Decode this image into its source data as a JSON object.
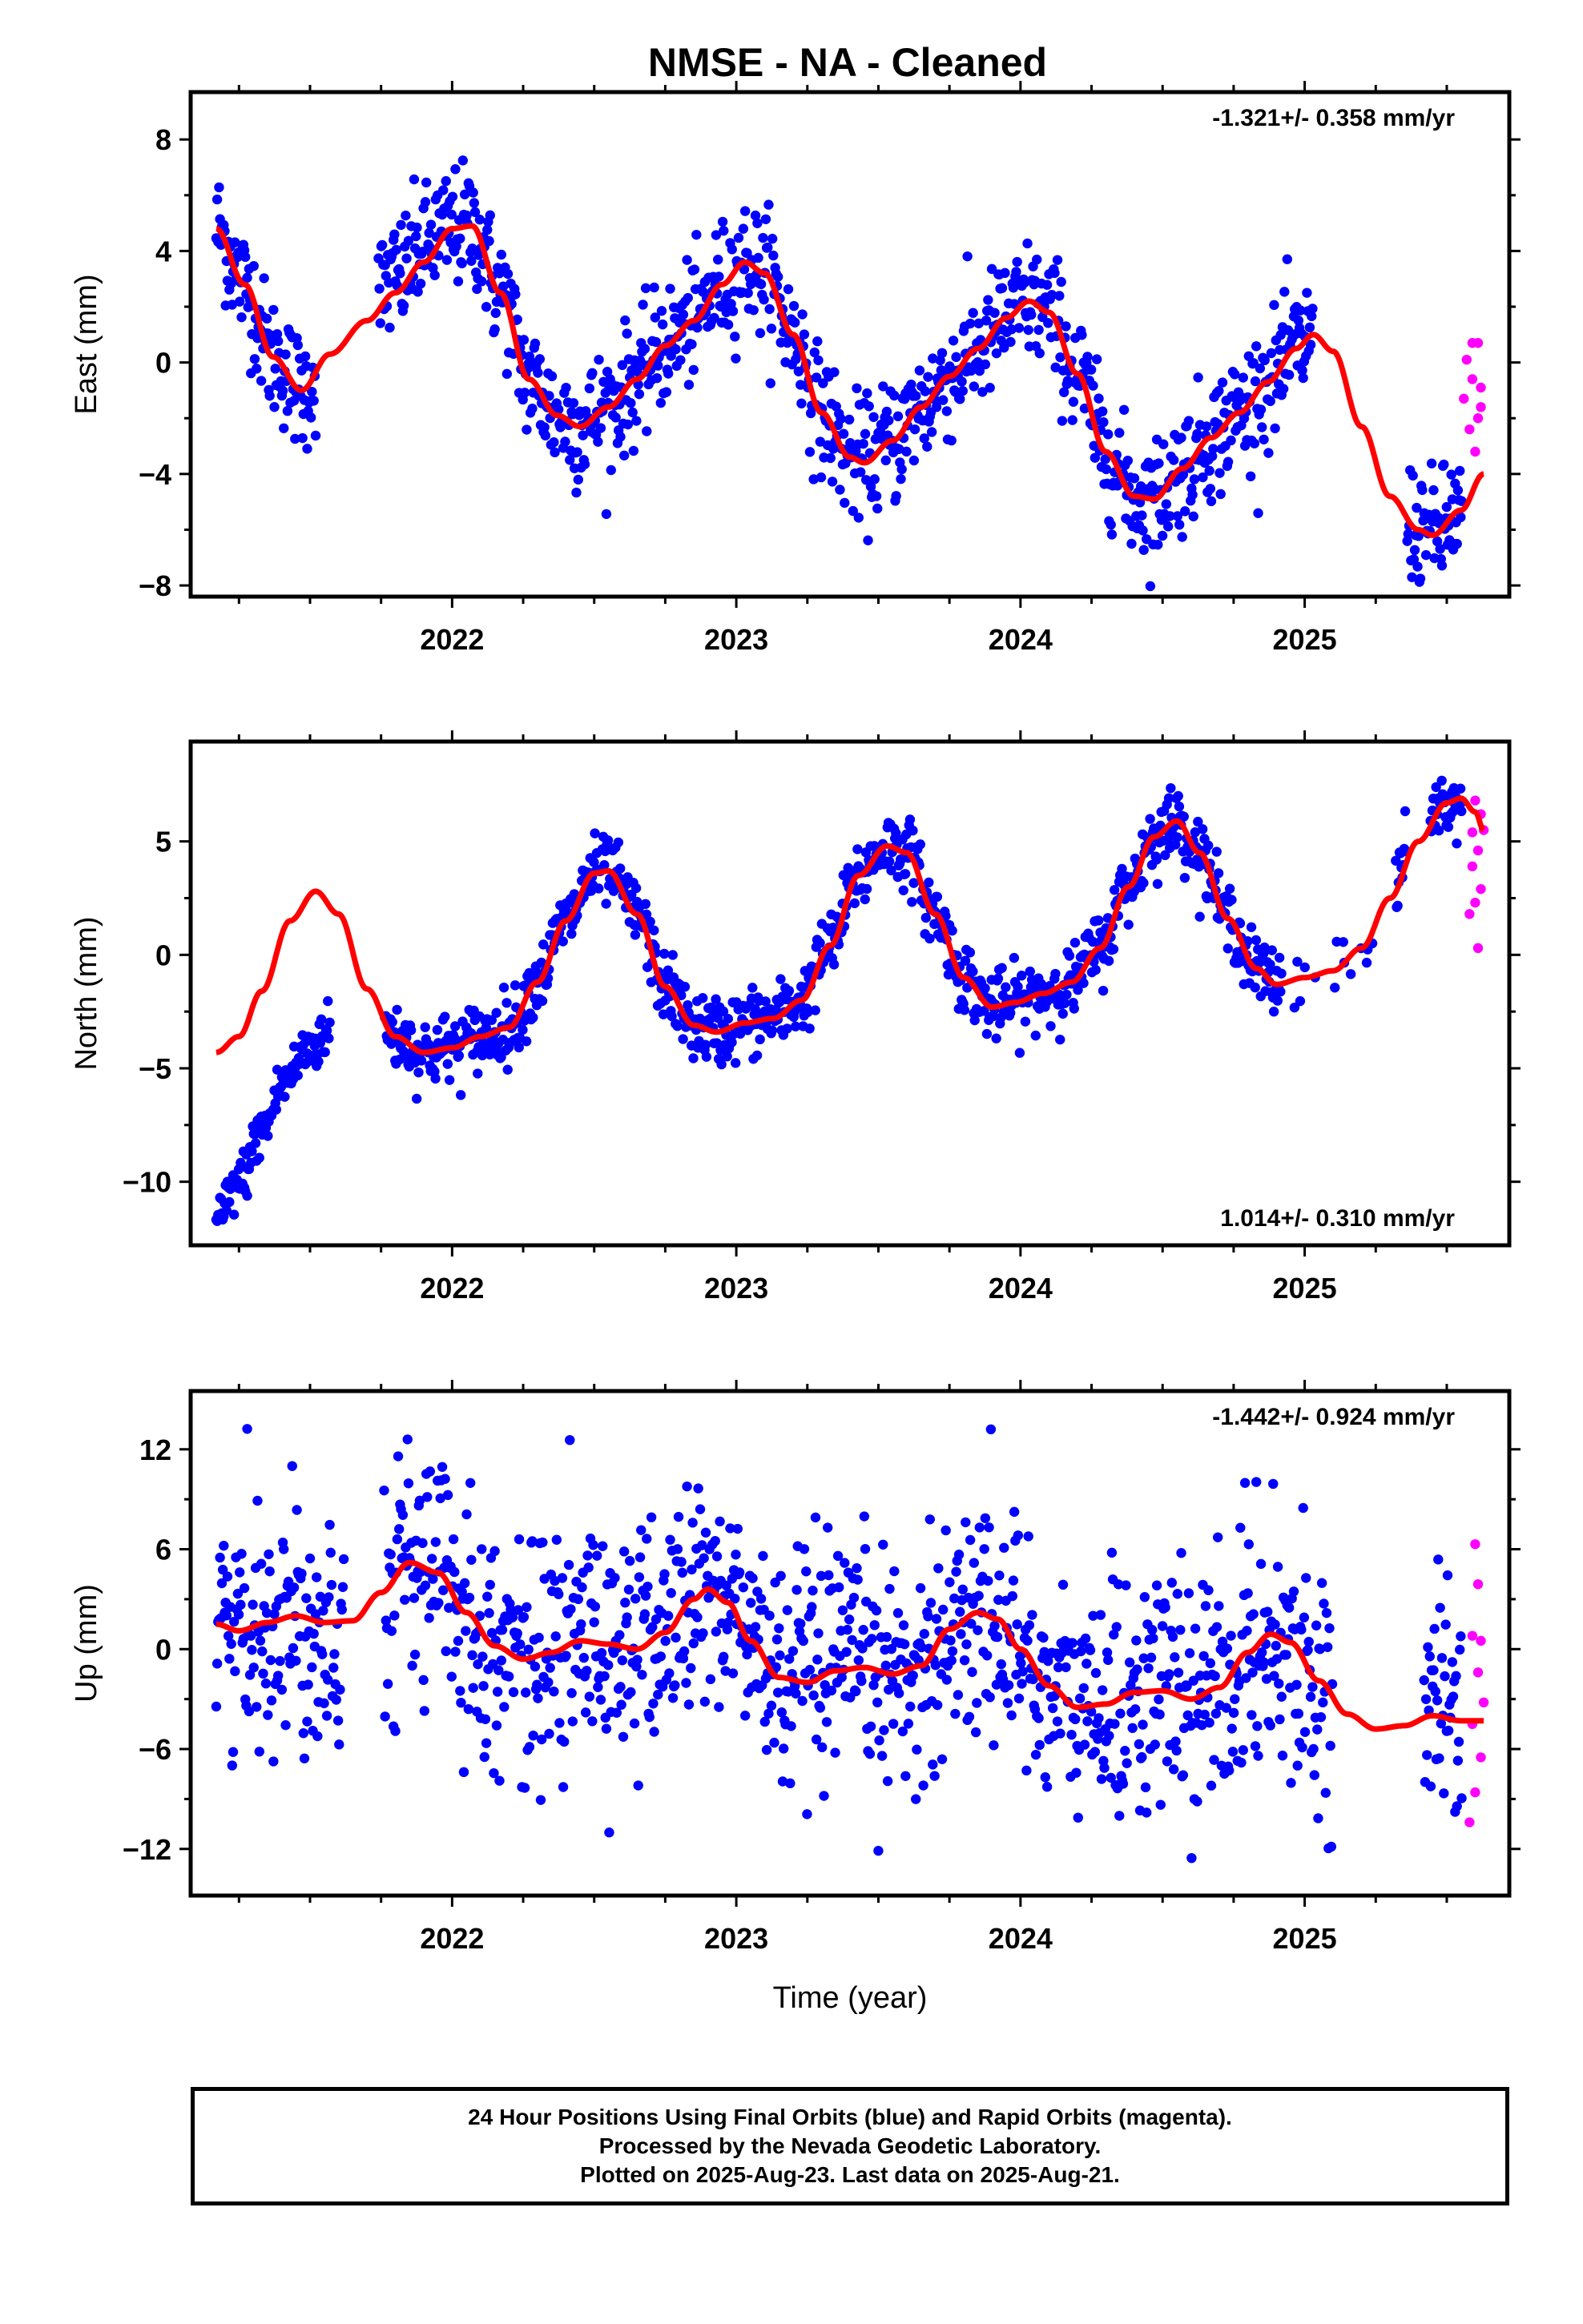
{
  "title": "NMSE  - NA - Cleaned",
  "colors": {
    "final": "#0000ff",
    "rapid": "#ff00ff",
    "model": "#ff0000",
    "frame": "#000000"
  },
  "footer": {
    "line1": "24 Hour Positions Using Final Orbits (blue) and Rapid Orbits (magenta).",
    "line2": "Processed by the Nevada Geodetic Laboratory.",
    "line3": "Plotted on 2025-Aug-23. Last data on 2025-Aug-21."
  },
  "chart_data": [
    {
      "type": "scatter",
      "ylabel": "East (mm)",
      "rate_label": "-1.321+/- 0.358 mm/yr",
      "rate_position": "top-right",
      "xlim": [
        2021.08,
        2025.72
      ],
      "ylim": [
        -8.4,
        9.7
      ],
      "xticks": [
        2022,
        2023,
        2024,
        2025
      ],
      "yticks": [
        -8,
        -4,
        0,
        4,
        8
      ],
      "model_knots": [
        [
          2021.17,
          4.8
        ],
        [
          2021.27,
          2.8
        ],
        [
          2021.37,
          0.2
        ],
        [
          2021.47,
          -1.0
        ],
        [
          2021.57,
          0.3
        ],
        [
          2021.7,
          1.5
        ],
        [
          2021.8,
          2.5
        ],
        [
          2021.9,
          3.6
        ],
        [
          2022.0,
          4.8
        ],
        [
          2022.07,
          4.9
        ],
        [
          2022.17,
          2.5
        ],
        [
          2022.27,
          -0.6
        ],
        [
          2022.37,
          -1.9
        ],
        [
          2022.45,
          -2.3
        ],
        [
          2022.55,
          -1.6
        ],
        [
          2022.65,
          -0.6
        ],
        [
          2022.75,
          0.6
        ],
        [
          2022.85,
          1.5
        ],
        [
          2022.95,
          2.8
        ],
        [
          2023.03,
          3.6
        ],
        [
          2023.1,
          3.2
        ],
        [
          2023.2,
          1.0
        ],
        [
          2023.3,
          -1.8
        ],
        [
          2023.4,
          -3.4
        ],
        [
          2023.45,
          -3.6
        ],
        [
          2023.55,
          -2.8
        ],
        [
          2023.65,
          -1.6
        ],
        [
          2023.75,
          -0.5
        ],
        [
          2023.85,
          0.5
        ],
        [
          2023.95,
          1.6
        ],
        [
          2024.03,
          2.2
        ],
        [
          2024.1,
          1.8
        ],
        [
          2024.2,
          -0.4
        ],
        [
          2024.3,
          -3.2
        ],
        [
          2024.4,
          -4.8
        ],
        [
          2024.47,
          -4.9
        ],
        [
          2024.57,
          -3.8
        ],
        [
          2024.67,
          -2.7
        ],
        [
          2024.77,
          -1.8
        ],
        [
          2024.87,
          -0.7
        ],
        [
          2024.97,
          0.5
        ],
        [
          2025.03,
          1.0
        ],
        [
          2025.1,
          0.4
        ],
        [
          2025.2,
          -2.3
        ],
        [
          2025.3,
          -4.8
        ],
        [
          2025.4,
          -6.0
        ],
        [
          2025.45,
          -6.2
        ],
        [
          2025.55,
          -5.3
        ],
        [
          2025.63,
          -4.0
        ]
      ],
      "final_noise": 1.1,
      "final_gaps": [
        [
          2021.53,
          2.0
        ],
        [
          2021.61,
          1.0
        ]
      ],
      "rapid_points": [
        [
          2025.56,
          -1.3
        ],
        [
          2025.57,
          0.1
        ],
        [
          2025.58,
          -2.4
        ],
        [
          2025.59,
          0.7
        ],
        [
          2025.59,
          -0.6
        ],
        [
          2025.6,
          -3.2
        ],
        [
          2025.61,
          -2.0
        ],
        [
          2025.61,
          0.7
        ],
        [
          2025.62,
          -1.6
        ],
        [
          2025.62,
          -0.9
        ]
      ]
    },
    {
      "type": "scatter",
      "ylabel": "North (mm)",
      "rate_label": "1.014+/- 0.310 mm/yr",
      "rate_position": "bottom-right",
      "xlim": [
        2021.08,
        2025.72
      ],
      "ylim": [
        -12.8,
        9.4
      ],
      "xticks": [
        2022,
        2023,
        2024,
        2025
      ],
      "yticks": [
        -10,
        -5,
        0,
        5
      ],
      "model_knots": [
        [
          2021.17,
          -4.3
        ],
        [
          2021.25,
          -3.6
        ],
        [
          2021.33,
          -1.6
        ],
        [
          2021.43,
          1.5
        ],
        [
          2021.52,
          2.8
        ],
        [
          2021.6,
          1.8
        ],
        [
          2021.7,
          -1.5
        ],
        [
          2021.8,
          -3.6
        ],
        [
          2021.9,
          -4.3
        ],
        [
          2022.0,
          -4.1
        ],
        [
          2022.1,
          -3.6
        ],
        [
          2022.2,
          -3.2
        ],
        [
          2022.3,
          -1.2
        ],
        [
          2022.4,
          1.5
        ],
        [
          2022.5,
          3.6
        ],
        [
          2022.55,
          3.7
        ],
        [
          2022.65,
          1.8
        ],
        [
          2022.75,
          -1.4
        ],
        [
          2022.85,
          -3.1
        ],
        [
          2022.93,
          -3.4
        ],
        [
          2023.03,
          -3.0
        ],
        [
          2023.13,
          -2.8
        ],
        [
          2023.23,
          -2.0
        ],
        [
          2023.33,
          0.4
        ],
        [
          2023.43,
          3.5
        ],
        [
          2023.53,
          4.8
        ],
        [
          2023.6,
          4.5
        ],
        [
          2023.7,
          1.8
        ],
        [
          2023.8,
          -1.0
        ],
        [
          2023.9,
          -2.3
        ],
        [
          2023.98,
          -2.1
        ],
        [
          2024.08,
          -1.7
        ],
        [
          2024.18,
          -1.2
        ],
        [
          2024.28,
          0.3
        ],
        [
          2024.38,
          3.0
        ],
        [
          2024.47,
          5.2
        ],
        [
          2024.55,
          5.9
        ],
        [
          2024.63,
          4.5
        ],
        [
          2024.73,
          1.6
        ],
        [
          2024.83,
          -0.6
        ],
        [
          2024.9,
          -1.3
        ],
        [
          2025.0,
          -1.0
        ],
        [
          2025.1,
          -0.7
        ],
        [
          2025.2,
          0.3
        ],
        [
          2025.3,
          2.5
        ],
        [
          2025.4,
          5.0
        ],
        [
          2025.5,
          6.7
        ],
        [
          2025.55,
          6.9
        ],
        [
          2025.6,
          6.3
        ],
        [
          2025.63,
          5.5
        ]
      ],
      "early_segment": [
        [
          2021.17,
          -11.8
        ],
        [
          2021.25,
          -10.0
        ],
        [
          2021.33,
          -7.8
        ],
        [
          2021.41,
          -5.6
        ],
        [
          2021.49,
          -4.2
        ],
        [
          2021.57,
          -3.3
        ]
      ],
      "final_noise": 0.75,
      "final_gaps": [
        [
          2021.62,
          1.7
        ],
        [
          2025.36,
          0.8
        ]
      ],
      "rapid_points": [
        [
          2025.58,
          1.8
        ],
        [
          2025.59,
          5.4
        ],
        [
          2025.59,
          3.9
        ],
        [
          2025.6,
          6.8
        ],
        [
          2025.6,
          2.3
        ],
        [
          2025.61,
          0.3
        ],
        [
          2025.61,
          4.6
        ],
        [
          2025.62,
          6.2
        ],
        [
          2025.62,
          2.9
        ],
        [
          2025.63,
          5.5
        ]
      ]
    },
    {
      "type": "scatter",
      "xlabel": "Time (year)",
      "ylabel": "Up (mm)",
      "rate_label": "-1.442+/- 0.924 mm/yr",
      "rate_position": "top-right",
      "xlim": [
        2021.08,
        2025.72
      ],
      "ylim": [
        -14.8,
        15.5
      ],
      "xticks": [
        2022,
        2023,
        2024,
        2025
      ],
      "yticks": [
        -12,
        -6,
        0,
        6,
        12
      ],
      "model_knots": [
        [
          2021.17,
          1.5
        ],
        [
          2021.25,
          1.1
        ],
        [
          2021.35,
          1.6
        ],
        [
          2021.45,
          2.0
        ],
        [
          2021.55,
          1.6
        ],
        [
          2021.65,
          1.7
        ],
        [
          2021.75,
          3.4
        ],
        [
          2021.85,
          5.2
        ],
        [
          2021.95,
          4.6
        ],
        [
          2022.05,
          2.2
        ],
        [
          2022.15,
          0.2
        ],
        [
          2022.25,
          -0.6
        ],
        [
          2022.35,
          -0.2
        ],
        [
          2022.45,
          0.5
        ],
        [
          2022.55,
          0.3
        ],
        [
          2022.65,
          0.0
        ],
        [
          2022.75,
          1.0
        ],
        [
          2022.85,
          3.0
        ],
        [
          2022.9,
          3.6
        ],
        [
          2022.97,
          2.8
        ],
        [
          2023.05,
          0.5
        ],
        [
          2023.15,
          -1.7
        ],
        [
          2023.25,
          -2.0
        ],
        [
          2023.35,
          -1.3
        ],
        [
          2023.45,
          -1.1
        ],
        [
          2023.55,
          -1.5
        ],
        [
          2023.65,
          -1.0
        ],
        [
          2023.75,
          1.2
        ],
        [
          2023.85,
          2.2
        ],
        [
          2023.92,
          1.8
        ],
        [
          2024.0,
          0.0
        ],
        [
          2024.1,
          -2.2
        ],
        [
          2024.2,
          -3.5
        ],
        [
          2024.3,
          -3.3
        ],
        [
          2024.4,
          -2.6
        ],
        [
          2024.5,
          -2.5
        ],
        [
          2024.6,
          -3.0
        ],
        [
          2024.7,
          -2.3
        ],
        [
          2024.8,
          -0.2
        ],
        [
          2024.88,
          0.9
        ],
        [
          2024.95,
          0.4
        ],
        [
          2025.05,
          -1.9
        ],
        [
          2025.15,
          -3.9
        ],
        [
          2025.25,
          -4.8
        ],
        [
          2025.35,
          -4.6
        ],
        [
          2025.45,
          -4.0
        ],
        [
          2025.55,
          -4.3
        ],
        [
          2025.63,
          -4.3
        ]
      ],
      "final_noise": 3.6,
      "final_gaps": [
        [
          2021.62,
          1.7
        ],
        [
          2025.34,
          0.8
        ]
      ],
      "rapid_points": [
        [
          2025.58,
          -10.4
        ],
        [
          2025.59,
          -4.5
        ],
        [
          2025.59,
          0.8
        ],
        [
          2025.6,
          6.3
        ],
        [
          2025.6,
          -8.6
        ],
        [
          2025.61,
          -1.4
        ],
        [
          2025.61,
          3.9
        ],
        [
          2025.62,
          -6.5
        ],
        [
          2025.62,
          0.5
        ],
        [
          2025.63,
          -3.2
        ]
      ]
    }
  ]
}
